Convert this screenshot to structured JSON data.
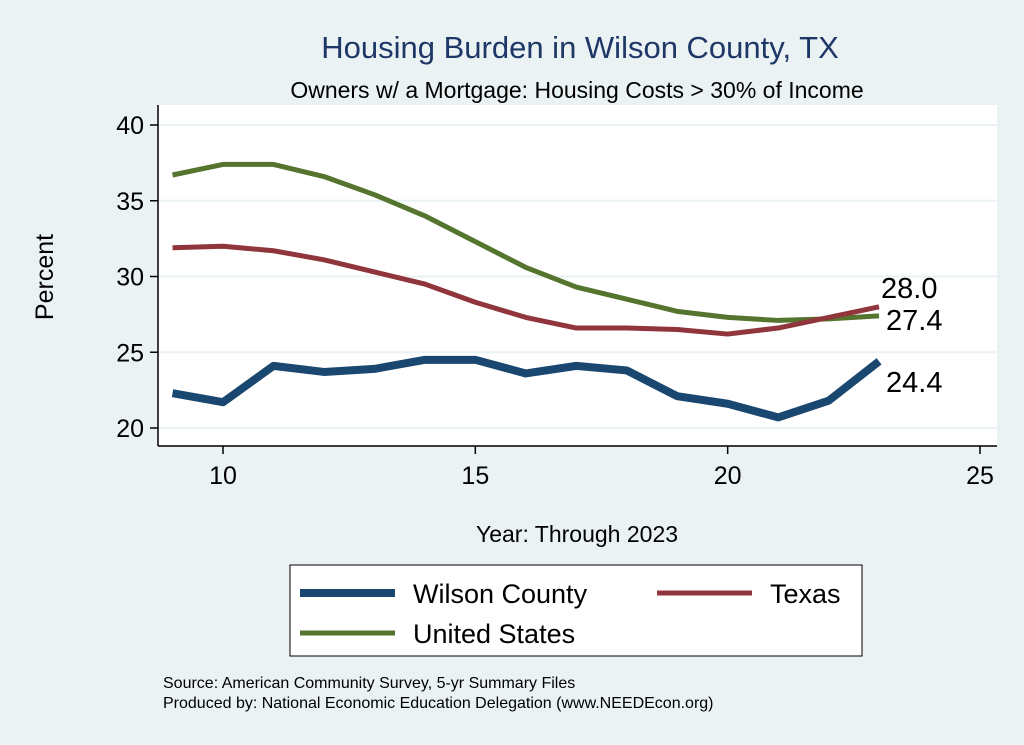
{
  "chart_data": {
    "type": "line",
    "title": "Housing Burden in Wilson County, TX",
    "subtitle": "Owners w/ a Mortgage: Housing Costs > 30% of Income",
    "xlabel": "Year: Through 2023",
    "ylabel": "Percent",
    "xlim": [
      9,
      25
    ],
    "ylim": [
      20,
      40
    ],
    "xticks": [
      10,
      15,
      20,
      25
    ],
    "yticks": [
      20,
      25,
      30,
      35,
      40
    ],
    "grid": true,
    "legend_position": "bottom",
    "x": [
      9,
      10,
      11,
      12,
      13,
      14,
      15,
      16,
      17,
      18,
      19,
      20,
      21,
      22,
      23
    ],
    "series": [
      {
        "name": "Wilson County",
        "color": "#1a476f",
        "end_label": "24.4",
        "values": [
          22.3,
          21.7,
          24.1,
          23.7,
          23.9,
          24.5,
          24.5,
          23.6,
          24.1,
          23.8,
          22.1,
          21.6,
          20.7,
          21.8,
          24.4
        ]
      },
      {
        "name": "Texas",
        "color": "#90353b",
        "end_label": "28.0",
        "values": [
          31.9,
          32.0,
          31.7,
          31.1,
          30.3,
          29.5,
          28.3,
          27.3,
          26.6,
          26.6,
          26.5,
          26.2,
          26.6,
          27.3,
          28.0
        ]
      },
      {
        "name": "United States",
        "color": "#55752f",
        "end_label": "27.4",
        "values": [
          36.7,
          37.4,
          37.4,
          36.6,
          35.4,
          34.0,
          32.3,
          30.6,
          29.3,
          28.5,
          27.7,
          27.3,
          27.1,
          27.2,
          27.4
        ]
      }
    ],
    "notes": [
      "Source: American Community Survey, 5-yr Summary Files",
      "Produced by: National Economic Education Delegation (www.NEEDEcon.org)"
    ]
  }
}
